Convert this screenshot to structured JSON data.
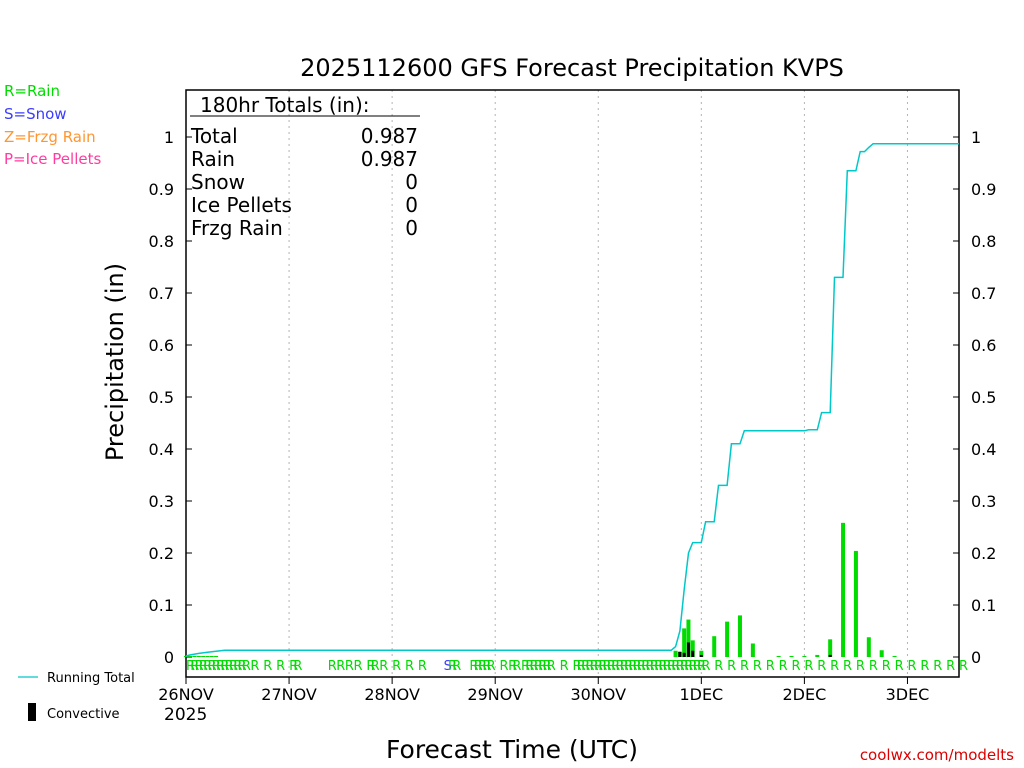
{
  "chart_data": {
    "type": "bar",
    "title": "2025112600 GFS Forecast Precipitation KVPS",
    "xlabel": "Forecast Time (UTC)",
    "ylabel": "Precipitation (in)",
    "ylim": [
      0,
      1.09
    ],
    "xlim_hours": [
      0,
      180
    ],
    "yticks": [
      "0",
      "0.1",
      "0.2",
      "0.3",
      "0.4",
      "0.5",
      "0.6",
      "0.7",
      "0.8",
      "0.9",
      "1"
    ],
    "xticks": [
      {
        "hour": 0,
        "label": "26NOV"
      },
      {
        "hour": 24,
        "label": "27NOV"
      },
      {
        "hour": 48,
        "label": "28NOV"
      },
      {
        "hour": 72,
        "label": "29NOV"
      },
      {
        "hour": 96,
        "label": "30NOV"
      },
      {
        "hour": 120,
        "label": "1DEC"
      },
      {
        "hour": 144,
        "label": "2DEC"
      },
      {
        "hour": 168,
        "label": "3DEC"
      }
    ],
    "year_label": "2025",
    "legend": {
      "rain": "R=Rain",
      "snow": "S=Snow",
      "frzg": "Z=Frzg Rain",
      "ice": "P=Ice Pellets",
      "running_total": "Running Total",
      "convective": "Convective"
    },
    "totals": {
      "header": "180hr Totals (in):",
      "rows": [
        {
          "label": "Total",
          "value": "0.987"
        },
        {
          "label": "Rain",
          "value": "0.987"
        },
        {
          "label": "Snow",
          "value": "0"
        },
        {
          "label": "Ice Pellets",
          "value": "0"
        },
        {
          "label": "Frzg Rain",
          "value": "0"
        }
      ]
    },
    "series": [
      {
        "name": "Rain",
        "color": "#00dc00",
        "hours": [
          0,
          1,
          2,
          3,
          4,
          5,
          6,
          7,
          114,
          115,
          116,
          117,
          118,
          120,
          123,
          126,
          129,
          132,
          138,
          141,
          144,
          147,
          150,
          153,
          156,
          159,
          162,
          165
        ],
        "values": [
          0.002,
          0.002,
          0.002,
          0.002,
          0.002,
          0.002,
          0.002,
          0.002,
          0.012,
          0.01,
          0.055,
          0.072,
          0.032,
          0.012,
          0.04,
          0.068,
          0.08,
          0.026,
          0.002,
          0.002,
          0.002,
          0.004,
          0.034,
          0.258,
          0.204,
          0.038,
          0.013,
          0.002
        ]
      },
      {
        "name": "Convective",
        "color": "#000000",
        "hours": [
          115,
          116,
          117,
          118,
          120,
          150
        ],
        "values": [
          0.01,
          0.008,
          0.028,
          0.012,
          0.004,
          0.004
        ]
      },
      {
        "name": "Running Total",
        "color": "#00c8c8",
        "type": "line",
        "hours": [
          0,
          1,
          3,
          5,
          8,
          9,
          113,
          114,
          115,
          116,
          117,
          118,
          119,
          120,
          121,
          122,
          123,
          124,
          125,
          126,
          127,
          128,
          129,
          130,
          132,
          144,
          145,
          146,
          147,
          148,
          149,
          150,
          151,
          152,
          153,
          154,
          155,
          156,
          157,
          158,
          159,
          160,
          180
        ],
        "values": [
          0.002,
          0.004,
          0.007,
          0.009,
          0.012,
          0.013,
          0.013,
          0.02,
          0.05,
          0.13,
          0.2,
          0.22,
          0.22,
          0.22,
          0.26,
          0.26,
          0.26,
          0.33,
          0.33,
          0.33,
          0.41,
          0.41,
          0.41,
          0.435,
          0.435,
          0.435,
          0.437,
          0.437,
          0.437,
          0.47,
          0.47,
          0.47,
          0.73,
          0.73,
          0.73,
          0.935,
          0.935,
          0.935,
          0.972,
          0.972,
          0.98,
          0.987,
          0.987
        ]
      }
    ],
    "ptype_row": {
      "hours": [
        0,
        1,
        2,
        3,
        4,
        5,
        6,
        7,
        8,
        9,
        10,
        11,
        12,
        13,
        15,
        18,
        21,
        24,
        25,
        33,
        35,
        37,
        39,
        42,
        43,
        45,
        48,
        51,
        54,
        60,
        61,
        62,
        66,
        67,
        68,
        69,
        70,
        73,
        75,
        76,
        78,
        79,
        80,
        81,
        82,
        83,
        84,
        87,
        90,
        91,
        92,
        93,
        94,
        95,
        96,
        97,
        98,
        99,
        100,
        101,
        102,
        103,
        104,
        105,
        106,
        107,
        108,
        109,
        110,
        111,
        112,
        113,
        114,
        115,
        116,
        117,
        118,
        119,
        120,
        123,
        126,
        129,
        132,
        135,
        138,
        141,
        144,
        147,
        150,
        153,
        156,
        159,
        162,
        165,
        168,
        171,
        174,
        177,
        180
      ],
      "types": [
        "R",
        "R",
        "R",
        "R",
        "R",
        "R",
        "R",
        "R",
        "R",
        "R",
        "R",
        "R",
        "R",
        "R",
        "R",
        "R",
        "R",
        "R",
        "R",
        "R",
        "R",
        "R",
        "R",
        "R",
        "R",
        "R",
        "R",
        "R",
        "R",
        "S",
        "R",
        "R",
        "R",
        "R",
        "R",
        "R",
        "R",
        "R",
        "R",
        "R",
        "R",
        "R",
        "R",
        "R",
        "R",
        "R",
        "R",
        "R",
        "R",
        "R",
        "R",
        "R",
        "R",
        "R",
        "R",
        "R",
        "R",
        "R",
        "R",
        "R",
        "R",
        "R",
        "R",
        "R",
        "R",
        "R",
        "R",
        "R",
        "R",
        "R",
        "R",
        "R",
        "R",
        "R",
        "R",
        "R",
        "R",
        "R",
        "R",
        "R",
        "R",
        "R",
        "R",
        "R",
        "R",
        "R",
        "R",
        "R",
        "R",
        "R",
        "R",
        "R",
        "R",
        "R",
        "R",
        "R",
        "R",
        "R",
        "R"
      ]
    },
    "colors": {
      "rain": "#00dc00",
      "snow": "#3c3cff",
      "frzg": "#ff9632",
      "ice": "#ff3ca0",
      "line": "#00c8c8",
      "convective": "#000000",
      "credit": "#dc0000"
    }
  },
  "credit": "coolwx.com/modelts"
}
